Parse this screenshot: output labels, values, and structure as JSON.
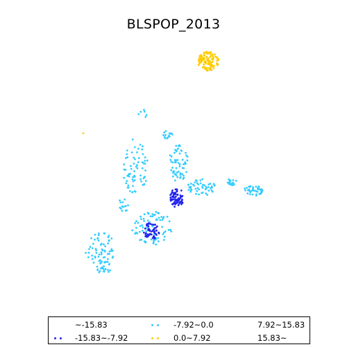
{
  "title": "BLSPOP_2013",
  "legend": {
    "items": [
      {
        "label": "~-15.83",
        "color": "#ffffff"
      },
      {
        "label": "-15.83~-7.92",
        "color": "#2222ee"
      },
      {
        "label": "-7.92~0.0",
        "color": "#33ccff"
      },
      {
        "label": "0.0~7.92",
        "color": "#ffcc00"
      },
      {
        "label": "7.92~15.83",
        "color": "#ffffff"
      },
      {
        "label": "15.83~",
        "color": "#ffffff"
      }
    ]
  }
}
